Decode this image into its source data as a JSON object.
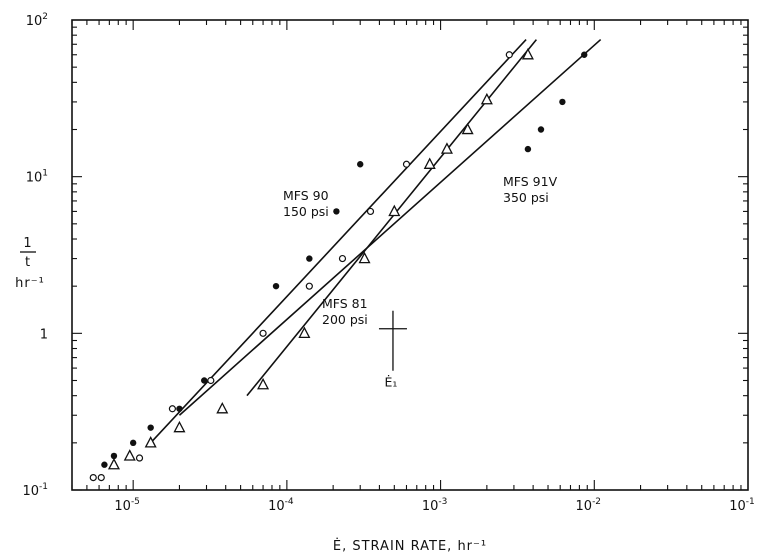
{
  "chart_data": {
    "type": "scatter",
    "title": "",
    "xscale": "log",
    "yscale": "log",
    "xlim": [
      4e-06,
      0.1
    ],
    "ylim": [
      0.1,
      100
    ],
    "grid": false,
    "xlabel": "Ė, STRAIN RATE, hr⁻¹",
    "ylabel": {
      "numerator": "1",
      "denominator": "t",
      "unit": "hr⁻¹"
    },
    "x_ticks": [
      {
        "value": 1e-05,
        "base": "10",
        "exp": "-5"
      },
      {
        "value": 0.0001,
        "base": "10",
        "exp": "-4"
      },
      {
        "value": 0.001,
        "base": "10",
        "exp": "-3"
      },
      {
        "value": 0.01,
        "base": "10",
        "exp": "-2"
      },
      {
        "value": 0.1,
        "base": "10",
        "exp": "-1"
      }
    ],
    "y_ticks": [
      {
        "value": 0.1,
        "base": "10",
        "exp": "-1"
      },
      {
        "value": 1,
        "base": "1",
        "exp": ""
      },
      {
        "value": 10,
        "base": "10",
        "exp": "1"
      },
      {
        "value": 100,
        "base": "10",
        "exp": "2"
      }
    ],
    "series": [
      {
        "marker": "open-circle",
        "annotation": [
          "MFS 90",
          "150 psi"
        ],
        "points": [
          [
            5.5e-06,
            0.12
          ],
          [
            6.2e-06,
            0.12
          ],
          [
            1.1e-05,
            0.16
          ],
          [
            1.8e-05,
            0.33
          ],
          [
            3.2e-05,
            0.5
          ],
          [
            7e-05,
            1.0
          ],
          [
            0.00014,
            2.0
          ],
          [
            0.00023,
            3.0
          ],
          [
            0.00035,
            6.0
          ],
          [
            0.0006,
            12.0
          ],
          [
            0.0028,
            60.0
          ]
        ],
        "fit": [
          [
            1.3e-05,
            0.2
          ],
          [
            0.0036,
            75.0
          ]
        ]
      },
      {
        "marker": "open-triangle",
        "annotation": [
          "MFS 81",
          "200 psi"
        ],
        "points": [
          [
            7.5e-06,
            0.145
          ],
          [
            9.5e-06,
            0.165
          ],
          [
            1.3e-05,
            0.2
          ],
          [
            2e-05,
            0.25
          ],
          [
            3.8e-05,
            0.33
          ],
          [
            7e-05,
            0.47
          ],
          [
            0.00013,
            1.0
          ],
          [
            0.00032,
            3.0
          ],
          [
            0.0005,
            6.0
          ],
          [
            0.00085,
            12.0
          ],
          [
            0.0011,
            15.0
          ],
          [
            0.0015,
            20.0
          ],
          [
            0.002,
            31.0
          ],
          [
            0.0037,
            60.0
          ]
        ],
        "fit": [
          [
            5.5e-05,
            0.4
          ],
          [
            0.0042,
            75.0
          ]
        ]
      },
      {
        "marker": "filled-circle",
        "annotation": [
          "MFS 91V",
          "350 psi"
        ],
        "points": [
          [
            6.5e-06,
            0.145
          ],
          [
            7.5e-06,
            0.165
          ],
          [
            1e-05,
            0.2
          ],
          [
            1.3e-05,
            0.25
          ],
          [
            2e-05,
            0.33
          ],
          [
            2.9e-05,
            0.5
          ],
          [
            8.5e-05,
            2.0
          ],
          [
            0.00014,
            3.0
          ],
          [
            0.00021,
            6.0
          ],
          [
            0.0003,
            12.0
          ],
          [
            0.0037,
            15.0
          ],
          [
            0.0045,
            20.0
          ],
          [
            0.0062,
            30.0
          ],
          [
            0.0086,
            60.0
          ]
        ],
        "fit": [
          [
            2e-05,
            0.3
          ],
          [
            0.011,
            75.0
          ]
        ]
      }
    ],
    "crossmark": {
      "x": 0.00049,
      "y": 1.07,
      "label": "Ė₁"
    }
  }
}
